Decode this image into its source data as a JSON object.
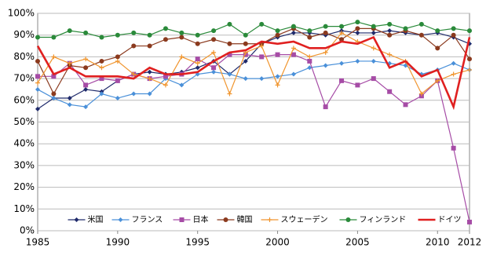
{
  "chart_data": {
    "type": "line",
    "x": [
      1985,
      1986,
      1987,
      1988,
      1989,
      1990,
      1991,
      1992,
      1993,
      1994,
      1995,
      1996,
      1997,
      1998,
      1999,
      2000,
      2001,
      2002,
      2003,
      2004,
      2005,
      2006,
      2007,
      2008,
      2009,
      2010,
      2011,
      2012
    ],
    "xlim": [
      1985,
      2012
    ],
    "xticks": [
      1985,
      1990,
      1995,
      2000,
      2005,
      2010,
      2012
    ],
    "ylim": [
      0,
      100
    ],
    "yticks": [
      {
        "value": 0,
        "label": "0%"
      },
      {
        "value": 10,
        "label": "10%"
      },
      {
        "value": 20,
        "label": "20%"
      },
      {
        "value": 30,
        "label": "30%"
      },
      {
        "value": 40,
        "label": "40%"
      },
      {
        "value": 50,
        "label": "50%"
      },
      {
        "value": 60,
        "label": "60%"
      },
      {
        "value": 70,
        "label": "70%"
      },
      {
        "value": 80,
        "label": "80%"
      },
      {
        "value": 90,
        "label": "90%"
      },
      {
        "value": 100,
        "label": "100%"
      }
    ],
    "grid": true,
    "legend": "bottom",
    "series": [
      {
        "name": "米国",
        "color": "#1f2a6b",
        "marker": "diamond",
        "width": 1.2,
        "values": [
          56,
          61,
          61,
          65,
          64,
          69,
          72,
          73,
          72,
          73,
          75,
          78,
          72,
          78,
          86,
          89,
          91,
          91,
          90,
          92,
          91,
          91,
          92,
          91,
          90,
          91,
          89,
          86
        ]
      },
      {
        "name": "フランス",
        "color": "#4a90d9",
        "marker": "diamond",
        "width": 1.2,
        "values": [
          65,
          61,
          58,
          57,
          63,
          61,
          63,
          63,
          70,
          67,
          72,
          73,
          72,
          70,
          70,
          71,
          72,
          75,
          76,
          77,
          78,
          78,
          77,
          76,
          72,
          74,
          77,
          74
        ]
      },
      {
        "name": "日本",
        "color": "#a64ca6",
        "marker": "square",
        "width": 1.2,
        "values": [
          71,
          71,
          77,
          67,
          70,
          69,
          72,
          70,
          71,
          72,
          79,
          75,
          81,
          81,
          80,
          81,
          81,
          78,
          57,
          69,
          67,
          70,
          64,
          58,
          62,
          69,
          38,
          4
        ]
      },
      {
        "name": "韓国",
        "color": "#8b3a1e",
        "marker": "circle",
        "width": 1.2,
        "values": [
          78,
          63,
          76,
          75,
          78,
          80,
          85,
          85,
          88,
          89,
          86,
          88,
          86,
          86,
          86,
          90,
          93,
          89,
          91,
          88,
          93,
          93,
          90,
          92,
          90,
          84,
          90,
          79
        ]
      },
      {
        "name": "スウェーデン",
        "color": "#f0952e",
        "marker": "plus",
        "width": 1.2,
        "values": [
          68,
          80,
          77,
          79,
          75,
          78,
          72,
          70,
          67,
          80,
          77,
          82,
          63,
          82,
          85,
          67,
          84,
          80,
          82,
          91,
          87,
          84,
          81,
          78,
          63,
          69,
          72,
          74
        ]
      },
      {
        "name": "フィンランド",
        "color": "#2a8a3a",
        "marker": "circle",
        "width": 1.2,
        "values": [
          89,
          89,
          92,
          91,
          89,
          90,
          91,
          90,
          93,
          91,
          90,
          92,
          95,
          90,
          95,
          92,
          94,
          92,
          94,
          94,
          96,
          94,
          95,
          93,
          95,
          92,
          93,
          92
        ]
      },
      {
        "name": "ドイツ",
        "color": "#e02020",
        "marker": "none",
        "width": 2.6,
        "values": [
          85,
          72,
          75,
          71,
          71,
          71,
          70,
          75,
          72,
          72,
          73,
          78,
          82,
          83,
          87,
          86,
          87,
          84,
          84,
          87,
          86,
          89,
          75,
          78,
          71,
          74,
          57,
          89
        ]
      }
    ]
  }
}
